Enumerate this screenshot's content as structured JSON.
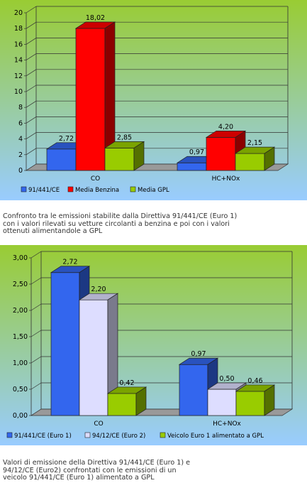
{
  "chart_data": [
    {
      "type": "bar",
      "categories": [
        "CO",
        "HC+NOx"
      ],
      "series": [
        {
          "name": "91/441/CE",
          "values": [
            2.72,
            0.97
          ],
          "color": "#3366ee"
        },
        {
          "name": "Media Benzina",
          "values": [
            18.02,
            4.2
          ],
          "color": "#ff0000"
        },
        {
          "name": "Media GPL",
          "values": [
            2.85,
            2.15
          ],
          "color": "#99cc00"
        }
      ],
      "value_labels": [
        [
          "2,72",
          "0,97"
        ],
        [
          "18,02",
          "4,20"
        ],
        [
          "2,85",
          "2,15"
        ]
      ],
      "y_ticks": [
        "0",
        "2",
        "4",
        "6",
        "8",
        "10",
        "12",
        "14",
        "16",
        "18",
        "20"
      ],
      "ylim": [
        0,
        20
      ],
      "grid": true,
      "legend_position": "bottom-left",
      "title": "",
      "xlabel": "",
      "ylabel": ""
    },
    {
      "type": "bar",
      "categories": [
        "CO",
        "HC+NOx"
      ],
      "series": [
        {
          "name": "91/441/CE (Euro 1)",
          "values": [
            2.72,
            0.97
          ],
          "color": "#3366ee"
        },
        {
          "name": "94/12/CE (Euro 2)",
          "values": [
            2.2,
            0.5
          ],
          "color": "#ddddff"
        },
        {
          "name": "Veicolo Euro 1 alimentato a GPL",
          "values": [
            0.42,
            0.46
          ],
          "color": "#99cc00"
        }
      ],
      "value_labels": [
        [
          "2,72",
          "0,97"
        ],
        [
          "2,20",
          "0,50"
        ],
        [
          "0,42",
          "0,46"
        ]
      ],
      "y_ticks": [
        "0,00",
        "0,50",
        "1,00",
        "1,50",
        "2,00",
        "2,50",
        "3,00"
      ],
      "ylim": [
        0,
        3
      ],
      "grid": true,
      "legend_position": "bottom-left",
      "title": "",
      "xlabel": "",
      "ylabel": ""
    }
  ],
  "captions": {
    "chart1": "Confronto tra le emissioni stabilite dalla Direttiva 91/441/CE (Euro 1)\ncon i valori rilevati su vetture circolanti a benzina e poi con i valori\nottenuti alimentandole a GPL",
    "chart2": "Valori di emissione della Direttiva 91/441/CE (Euro 1) e\n94/12/CE (Euro2) confrontati con le emissioni di un\nveicolo 91/441/CE (Euro 1) alimentato a GPL"
  },
  "colors": {
    "background_top": "#99cc33",
    "background_bottom": "#99ccff",
    "floor": "#999999"
  }
}
